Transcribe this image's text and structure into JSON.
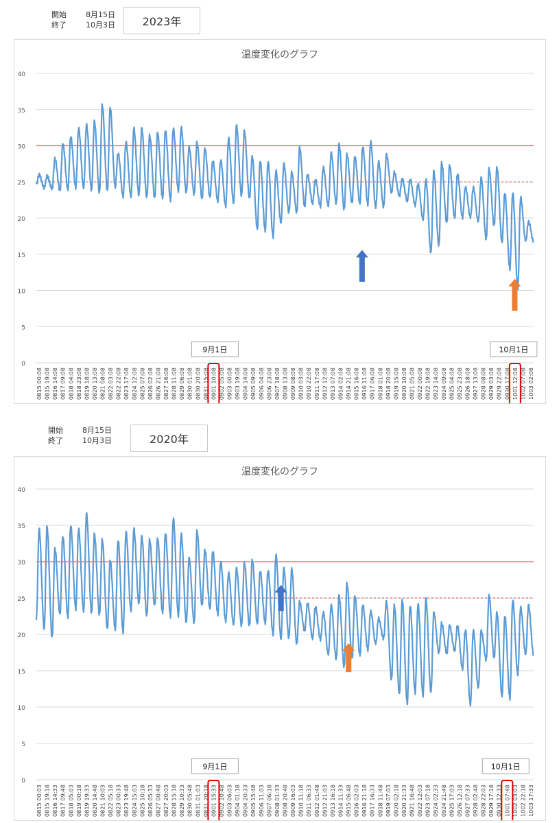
{
  "panels": [
    {
      "start_label": "開始",
      "start_value": "8月15日",
      "end_label": "終了",
      "end_value": "10月3日",
      "year": "2023年",
      "chart_data": {
        "type": "line",
        "title": "温度変化のグラフ",
        "ylim": [
          0,
          40
        ],
        "yticks": [
          0,
          5,
          10,
          15,
          20,
          25,
          30,
          35,
          40
        ],
        "grid": true,
        "line_color": "#5b9bd5",
        "ref_solid": 30,
        "ref_dashed": 25,
        "ref_color": "#e06666",
        "x_labels": [
          "0815 00:08",
          "0815 19:08",
          "0816 14:08",
          "0817 09:08",
          "0818 04:08",
          "0818 23:08",
          "0819 18:08",
          "0820 13:08",
          "0821 08:08",
          "0822 03:08",
          "0822 22:08",
          "0823 17:08",
          "0824 12:08",
          "0825 07:08",
          "0826 02:08",
          "0826 21:08",
          "0827 16:08",
          "0828 11:08",
          "0829 06:08",
          "0830 01:08",
          "0830 20:08",
          "0831 15:08",
          "0901 10:08",
          "0902 05:08",
          "0903 00:08",
          "0903 19:08",
          "0904 14:08",
          "0905 09:08",
          "0906 04:08",
          "0906 23:08",
          "0907 18:08",
          "0908 13:08",
          "0909 08:08",
          "0910 03:08",
          "0910 22:08",
          "0911 17:08",
          "0912 12:08",
          "0913 07:08",
          "0914 02:08",
          "0914 21:08",
          "0915 16:08",
          "0916 11:08",
          "0917 06:08",
          "0918 01:08",
          "0918 20:08",
          "0919 15:08",
          "0920 10:08",
          "0921 05:08",
          "0922 00:08",
          "0922 19:08",
          "0923 14:08",
          "0924 09:08",
          "0925 04:08",
          "0925 23:08",
          "0926 18:08",
          "0927 13:08",
          "0928 08:08",
          "0929 03:08",
          "0929 22:08",
          "0930 17:08",
          "1001 12:08",
          "1002 07:08",
          "1003 02:08"
        ],
        "daily_max": [
          26,
          25.8,
          28.2,
          30.3,
          31.3,
          32.4,
          32.9,
          33.4,
          35.6,
          35.3,
          29,
          30.5,
          32.4,
          32.4,
          31.4,
          31.8,
          32.2,
          32.4,
          32.5,
          29.8,
          30.4,
          29.6,
          27.9,
          28,
          31,
          32.8,
          32,
          28.5,
          27.9,
          27.8,
          26.5,
          27.5,
          26.3,
          29.8,
          26,
          25.3,
          27,
          29,
          30.2,
          28.8,
          28.5,
          29.9,
          30.6,
          27.8,
          28.8,
          26.3,
          25.4,
          25.3,
          24.7,
          25.3,
          26.5,
          27.6,
          27.3,
          26.1,
          24.3,
          24.2,
          25.6,
          26.8,
          27,
          23.5,
          23.5,
          22.8,
          19.5
        ],
        "daily_min": [
          24.7,
          24.2,
          24.1,
          23.8,
          24,
          24.2,
          24.1,
          23.8,
          23.5,
          23.8,
          24.3,
          23,
          22.9,
          23.1,
          22.9,
          22.8,
          22.8,
          22.5,
          23.7,
          23.5,
          23.3,
          22.7,
          23,
          22.4,
          21.6,
          22,
          23.1,
          22.8,
          18.5,
          18.3,
          17.4,
          19.3,
          20.8,
          20.8,
          21.6,
          22.1,
          21.6,
          21.6,
          22,
          21.2,
          22.1,
          22.1,
          21.9,
          21.4,
          21.5,
          23.6,
          23.1,
          22.4,
          21.8,
          19.8,
          15.2,
          16.2,
          19.4,
          20.1,
          20.1,
          20.1,
          19.5,
          17.1,
          19,
          16.7,
          13,
          10.3,
          16.8
        ],
        "highlight_labels": [
          "0901 10:08",
          "1001 12:08"
        ],
        "annotations": [
          "9月1日",
          "10月1日"
        ]
      }
    },
    {
      "start_label": "開始",
      "start_value": "8月15日",
      "end_label": "終了",
      "end_value": "10月3日",
      "year": "2020年",
      "chart_data": {
        "type": "line",
        "title": "温度変化のグラフ",
        "ylim": [
          0,
          40
        ],
        "yticks": [
          0,
          5,
          10,
          15,
          20,
          25,
          30,
          35,
          40
        ],
        "grid": true,
        "line_color": "#5b9bd5",
        "ref_solid": 30,
        "ref_dashed": 25,
        "ref_color": "#e06666",
        "x_labels": [
          "0815 00:03",
          "0815 19:18",
          "0816 14:33",
          "0817 09:48",
          "0818 05:03",
          "0819 00:18",
          "0819 19:33",
          "0820 14:48",
          "0821 10:03",
          "0822 05:18",
          "0823 00:33",
          "0823 19:48",
          "0824 15:03",
          "0825 10:18",
          "0826 05:33",
          "0827 00:48",
          "0827 20:03",
          "0828 15:18",
          "0829 10:33",
          "0830 05:48",
          "0831 01:03",
          "0831 20:18",
          "0901 15:33",
          "0902 10:48",
          "0903 06:03",
          "0904 01:18",
          "0904 20:33",
          "0905 15:48",
          "0906 11:03",
          "0907 06:18",
          "0908 01:33",
          "0908 20:48",
          "0909 16:03",
          "0910 11:18",
          "0911 06:33",
          "0912 01:48",
          "0912 21:03",
          "0913 16:18",
          "0914 11:33",
          "0915 06:48",
          "0916 02:03",
          "0916 21:18",
          "0917 16:33",
          "0918 11:48",
          "0919 07:03",
          "0920 02:18",
          "0920 21:33",
          "0921 16:48",
          "0922 12:03",
          "0923 07:18",
          "0924 02:33",
          "0924 21:48",
          "0925 17:03",
          "0926 12:18",
          "0927 07:33",
          "0928 02:48",
          "0928 22:03",
          "0929 17:18",
          "0930 12:33",
          "1001 07:48",
          "1002 03:03",
          "1002 22:18",
          "1003 17:33"
        ],
        "daily_max": [
          34.5,
          34.8,
          31.8,
          33.5,
          35,
          34.5,
          36.6,
          33.8,
          33,
          30.2,
          33,
          34.1,
          34.5,
          33.5,
          33,
          33.2,
          34,
          36,
          33.8,
          30.5,
          34.2,
          31.6,
          31.5,
          30,
          28.4,
          29.1,
          29.8,
          30.2,
          28.7,
          28.8,
          30.9,
          29.1,
          29,
          24.5,
          24.3,
          23.8,
          23,
          24,
          25.3,
          27,
          25.3,
          24.1,
          23.2,
          22.2,
          24.5,
          24,
          24.8,
          24,
          24.2,
          24.9,
          23,
          21.5,
          21.2,
          21.2,
          20.6,
          20.5,
          20.5,
          25.3,
          23,
          22.6,
          24.7,
          23.7,
          24
        ],
        "daily_min": [
          22,
          20.7,
          19.6,
          22.8,
          22.4,
          23.5,
          23.1,
          22.9,
          22.7,
          20.8,
          20.7,
          20.3,
          23.2,
          24.2,
          22.6,
          24,
          23,
          22.5,
          22.5,
          21.6,
          21.6,
          24,
          23.6,
          22.8,
          21.8,
          21.3,
          21.2,
          21.2,
          21.5,
          21.6,
          20,
          19.3,
          19.5,
          18.7,
          20.5,
          19.5,
          19.3,
          17.2,
          16.6,
          15.5,
          16.7,
          17.2,
          17.9,
          18.7,
          19.4,
          13.8,
          11.8,
          10.5,
          12,
          11.5,
          12,
          17.5,
          17.4,
          17.8,
          15.3,
          10.3,
          12.6,
          16.5,
          16.8,
          11.5,
          11.2,
          14.5,
          17.2
        ],
        "highlight_labels": [
          "0901 15:33",
          "1001 07:48"
        ],
        "annotations": [
          "9月1日",
          "10月1日"
        ]
      }
    }
  ]
}
